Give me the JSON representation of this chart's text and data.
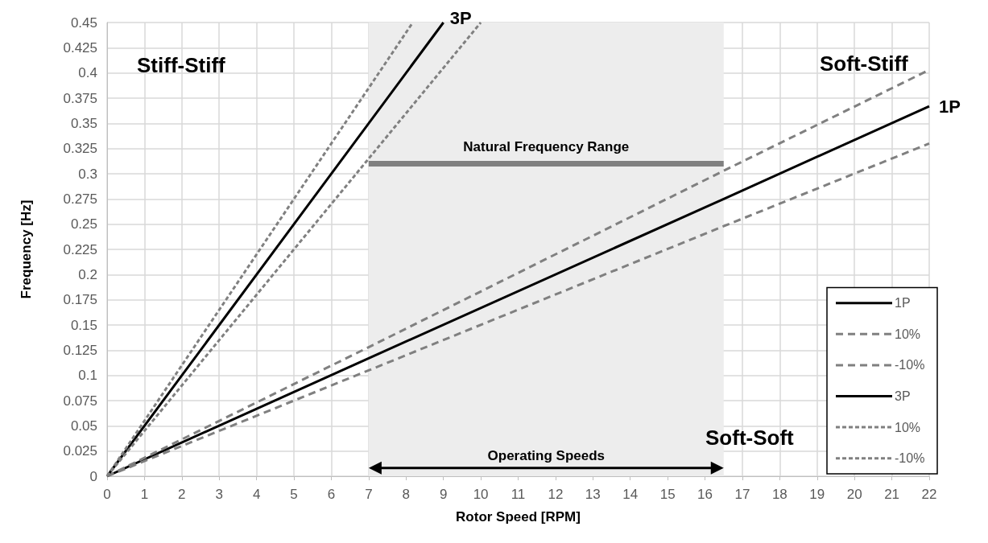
{
  "chart_data": {
    "type": "line",
    "xlabel": "Rotor Speed [RPM]",
    "ylabel": "Frequency [Hz]",
    "xlim": [
      0,
      22
    ],
    "xticks": [
      0,
      1,
      2,
      3,
      4,
      5,
      6,
      7,
      8,
      9,
      10,
      11,
      12,
      13,
      14,
      15,
      16,
      17,
      18,
      19,
      20,
      21,
      22
    ],
    "ylim": [
      0,
      0.45
    ],
    "yticks": [
      0,
      0.025,
      0.05,
      0.075,
      0.1,
      0.125,
      0.15,
      0.175,
      0.2,
      0.225,
      0.25,
      0.275,
      0.3,
      0.325,
      0.35,
      0.375,
      0.4,
      0.425,
      0.45
    ],
    "grid": true,
    "legend": "bottom right",
    "marker": "none",
    "series": [
      {
        "name": "1P",
        "color": "#000000",
        "x": [
          0,
          7,
          16.5,
          22
        ],
        "values": [
          0,
          0.117,
          0.275,
          0.367
        ],
        "line_style": "solid"
      },
      {
        "name": "10%",
        "color": "#808080",
        "x": [
          0,
          7,
          16.5,
          22
        ],
        "values": [
          0,
          0.128,
          0.303,
          0.403
        ],
        "line_style": "dashed"
      },
      {
        "name": "-10%",
        "color": "#808080",
        "x": [
          0,
          7,
          16.5,
          22
        ],
        "values": [
          0,
          0.105,
          0.248,
          0.33
        ],
        "line_style": "dashed"
      },
      {
        "name": "3P",
        "color": "#000000",
        "x": [
          0,
          7,
          9
        ],
        "values": [
          0,
          0.35,
          0.45
        ],
        "line_style": "solid"
      },
      {
        "name": "10%",
        "color": "#808080",
        "x": [
          0,
          7,
          8.18
        ],
        "values": [
          0,
          0.385,
          0.45
        ],
        "line_style": "dotted"
      },
      {
        "name": "-10%",
        "color": "#808080",
        "x": [
          0,
          7,
          10
        ],
        "values": [
          0,
          0.315,
          0.45
        ],
        "line_style": "dotted"
      },
      {
        "color": "#808080",
        "x": [
          7,
          16.5
        ],
        "values": [
          0.31,
          0.31
        ],
        "line_style": "solid"
      }
    ],
    "bands": [
      {
        "axis": "x",
        "from": 7,
        "to": 16.5,
        "label": "Operating Speeds",
        "color": "#ededed"
      }
    ],
    "annotations": [
      "Stiff-Stiff",
      "Soft-Stiff",
      "Soft-Soft",
      {
        "text": "Natural Frequency Range",
        "x": 11.75,
        "y": 0.31
      }
    ]
  }
}
